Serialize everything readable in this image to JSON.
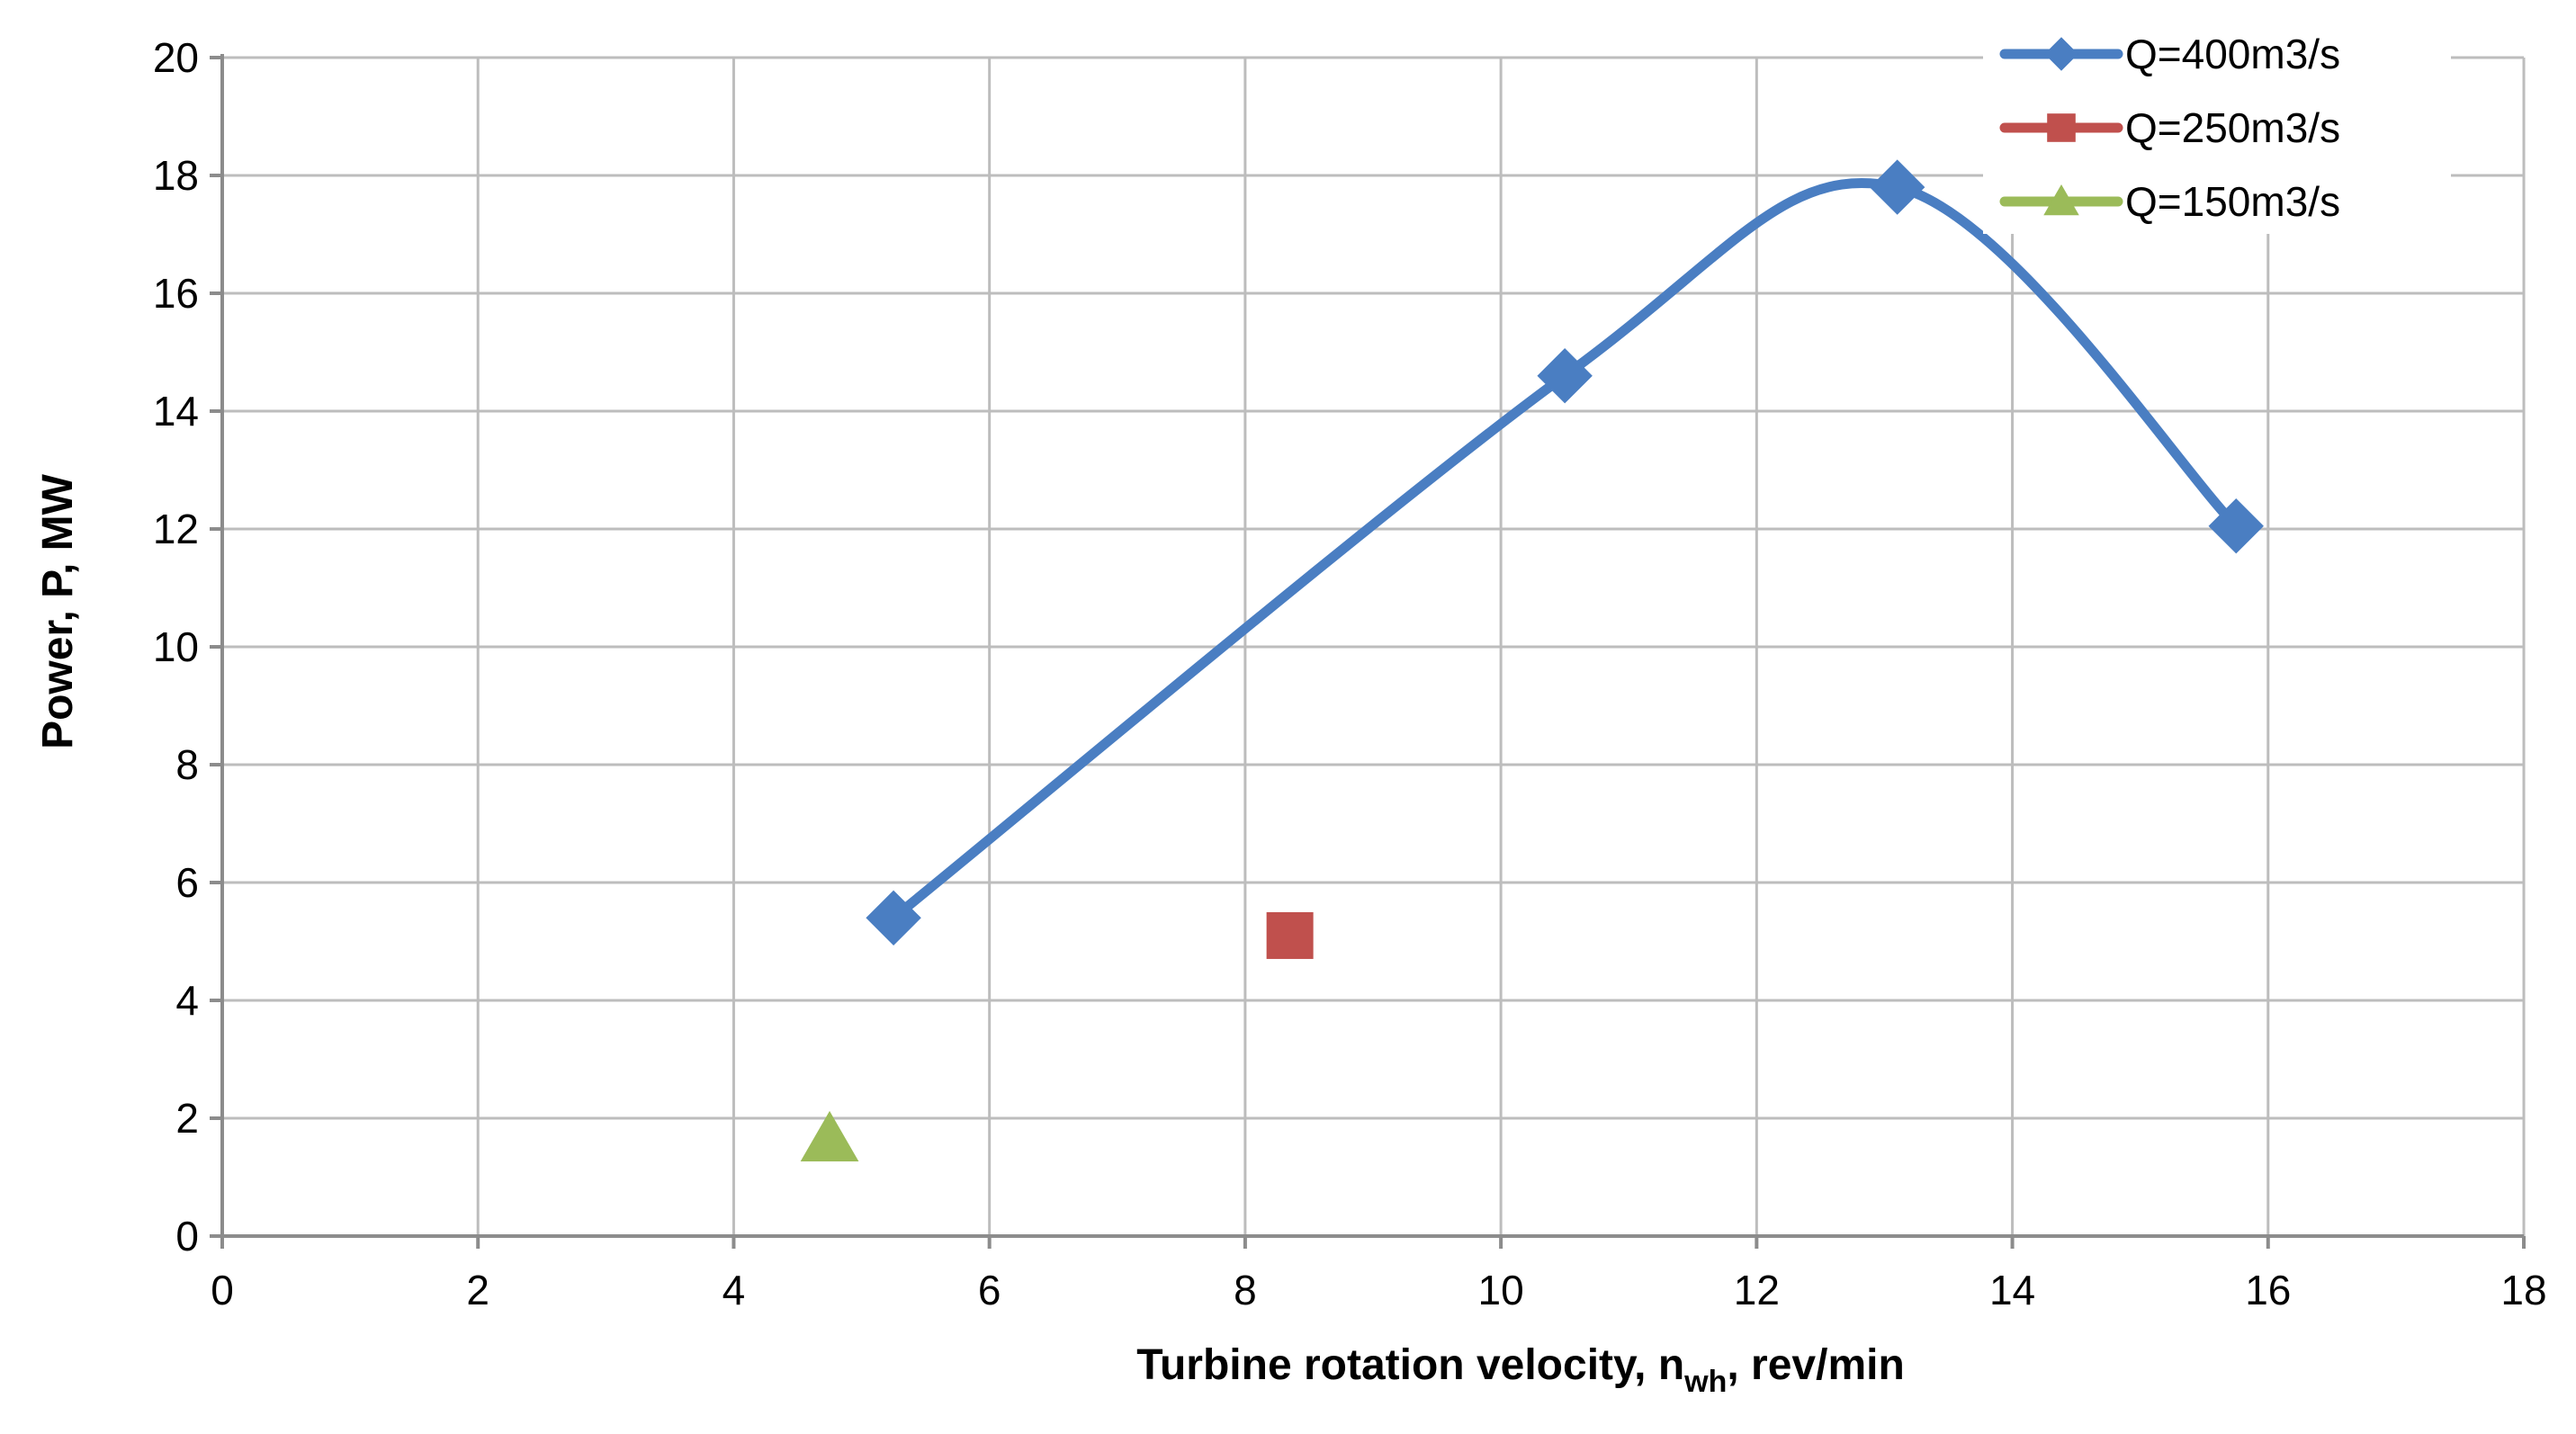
{
  "chart_data": {
    "type": "line",
    "title": "",
    "xlabel": {
      "main": "Turbine rotation velocity, n",
      "subscript": "wh",
      "suffix": ", rev/min"
    },
    "ylabel": "Power, P, MW",
    "xlim": [
      0,
      18
    ],
    "ylim": [
      0,
      20
    ],
    "x_ticks": [
      0,
      2,
      4,
      6,
      8,
      10,
      12,
      14,
      16,
      18
    ],
    "y_ticks": [
      0,
      2,
      4,
      6,
      8,
      10,
      12,
      14,
      16,
      18,
      20
    ],
    "grid": true,
    "legend_position": "top-right",
    "series": [
      {
        "name": "Q=400m3/s",
        "color": "#4A7EC2",
        "marker": "diamond",
        "smooth": true,
        "points": [
          {
            "x": 5.25,
            "y": 5.4
          },
          {
            "x": 10.5,
            "y": 14.6
          },
          {
            "x": 13.1,
            "y": 17.8
          },
          {
            "x": 15.75,
            "y": 12.05
          }
        ]
      },
      {
        "name": "Q=250m3/s",
        "color": "#C0504D",
        "marker": "square",
        "smooth": false,
        "points": [
          {
            "x": 8.35,
            "y": 5.1
          }
        ]
      },
      {
        "name": "Q=150m3/s",
        "color": "#9BBB59",
        "marker": "triangle",
        "smooth": false,
        "points": [
          {
            "x": 4.75,
            "y": 1.65
          }
        ]
      }
    ]
  }
}
